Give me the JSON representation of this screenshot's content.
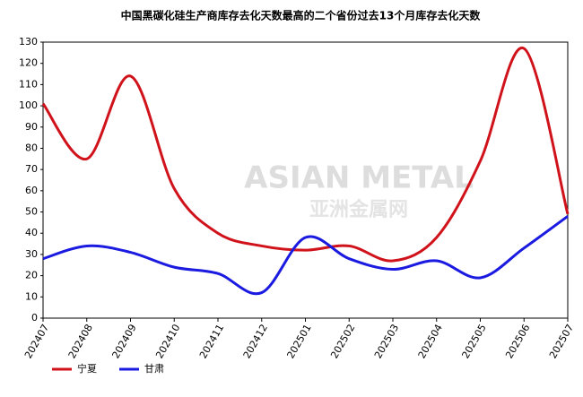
{
  "chart_data": {
    "type": "line",
    "title": "中国黑碳化硅生产商库存去化天数最高的二个省份过去13个月库存去化天数",
    "watermark": [
      "ASIAN METAL",
      "亚洲金属网"
    ],
    "categories": [
      "202407",
      "202408",
      "202409",
      "202410",
      "202411",
      "202412",
      "202501",
      "202502",
      "202503",
      "202504",
      "202505",
      "202506",
      "202507"
    ],
    "series": [
      {
        "name": "宁夏",
        "color": "#d0121b",
        "values": [
          101,
          75,
          114,
          61,
          40,
          34,
          32,
          34,
          27,
          38,
          74,
          127,
          49
        ]
      },
      {
        "name": "甘肃",
        "color": "#1a1ae0",
        "values": [
          28,
          34,
          31,
          24,
          21,
          12,
          38,
          28,
          23,
          27,
          19,
          33,
          48
        ]
      }
    ],
    "ylim": [
      0,
      130
    ],
    "yticks": [
      0,
      10,
      20,
      30,
      40,
      50,
      60,
      70,
      80,
      90,
      100,
      110,
      120,
      130
    ],
    "grid": false,
    "legend": "bottom-left"
  }
}
